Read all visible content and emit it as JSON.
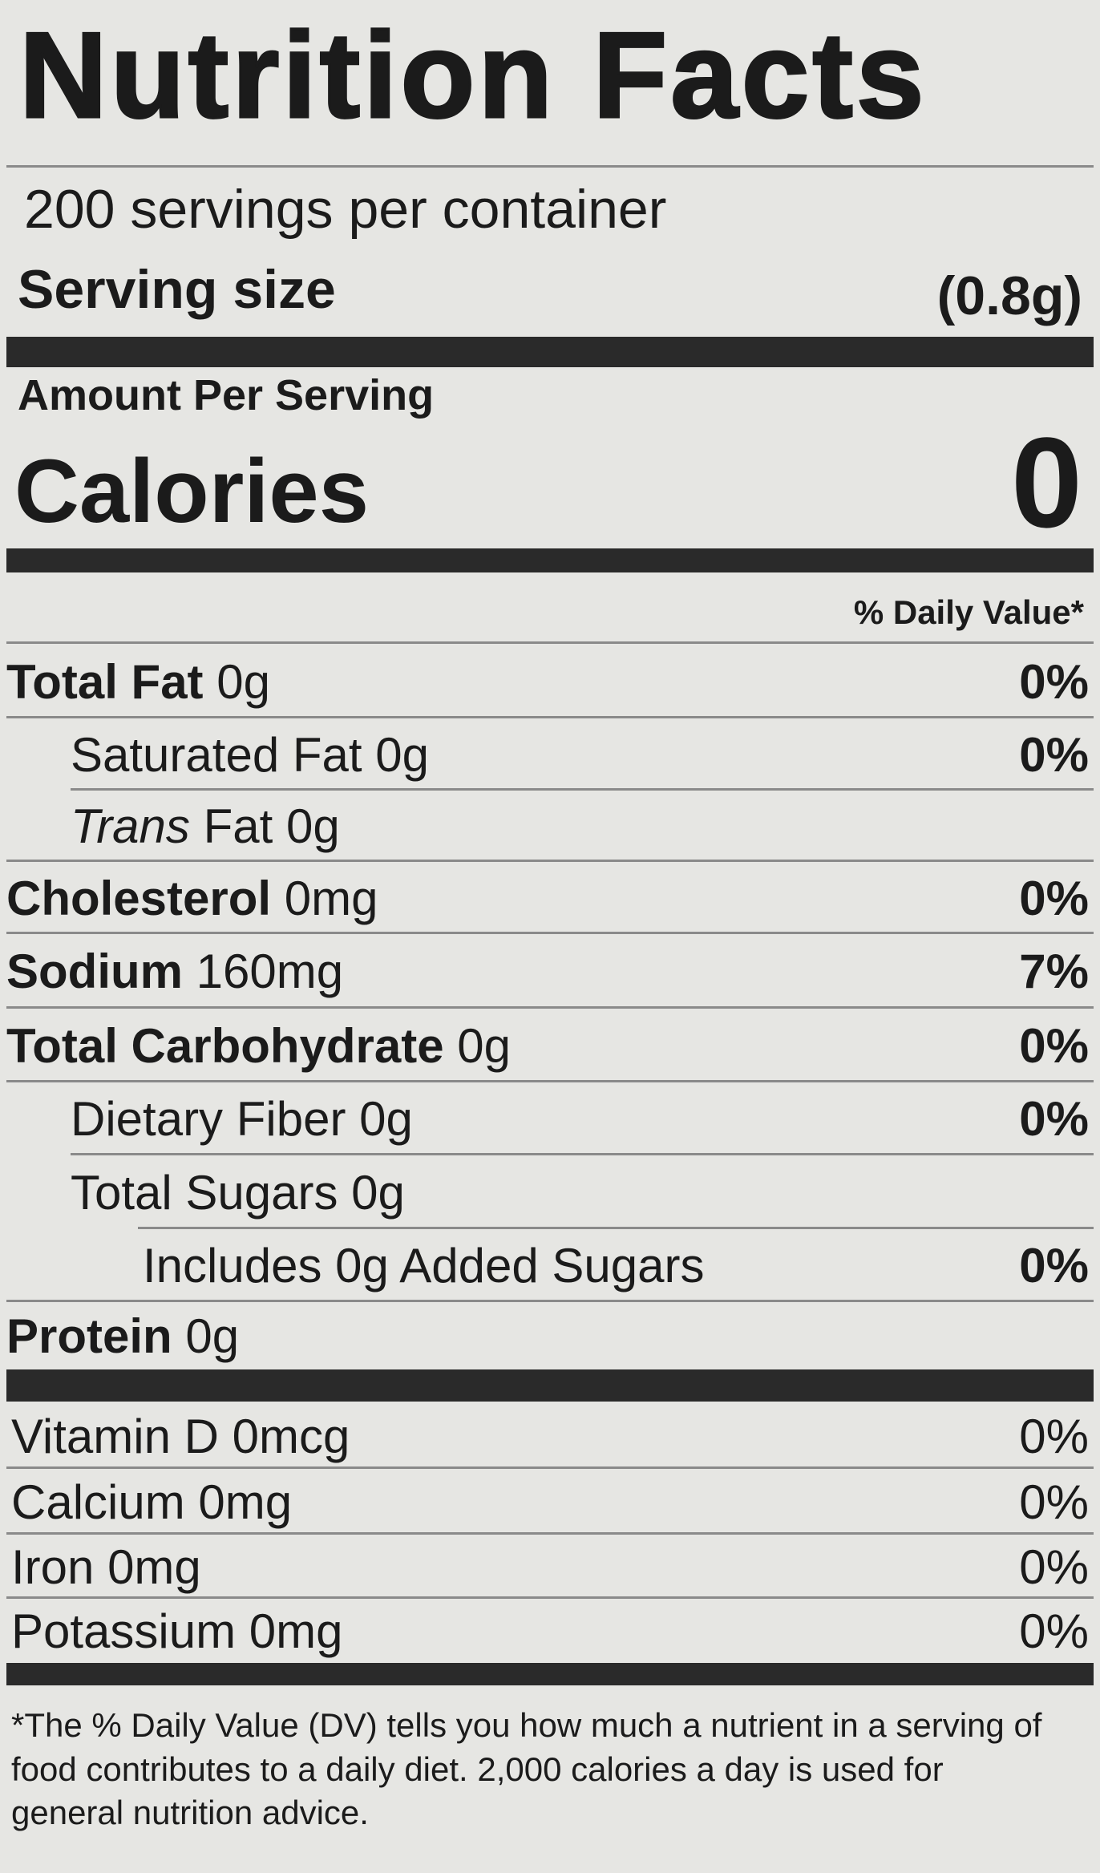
{
  "label": {
    "title": "Nutrition Facts",
    "servings_per_container": "200 servings per container",
    "serving_size_label": "Serving size",
    "serving_size_value": "(0.8g)",
    "amount_per_serving": "Amount Per Serving",
    "calories_label": "Calories",
    "calories_value": "0",
    "daily_value_header": "% Daily Value*",
    "nutrients": [
      {
        "name": "Total Fat",
        "amount": "0g",
        "dv": "0%",
        "bold": true,
        "indent": 0,
        "line_indent": 0
      },
      {
        "name": "Saturated Fat",
        "amount": "0g",
        "dv": "0%",
        "bold": false,
        "indent": 1,
        "line_indent": 1
      },
      {
        "name": "Trans",
        "name_suffix": " Fat",
        "amount": "0g",
        "dv": "",
        "bold": false,
        "italic_name": true,
        "indent": 1,
        "line_indent": 0
      },
      {
        "name": "Cholesterol",
        "amount": "0mg",
        "dv": "0%",
        "bold": true,
        "indent": 0,
        "line_indent": 0
      },
      {
        "name": "Sodium",
        "amount": "160mg",
        "dv": "7%",
        "bold": true,
        "indent": 0,
        "line_indent": 0
      },
      {
        "name": "Total Carbohydrate",
        "amount": "0g",
        "dv": "0%",
        "bold": true,
        "indent": 0,
        "line_indent": 0
      },
      {
        "name": "Dietary Fiber",
        "amount": "0g",
        "dv": "0%",
        "bold": false,
        "indent": 1,
        "line_indent": 1
      },
      {
        "name": "Total Sugars",
        "amount": "0g",
        "dv": "",
        "bold": false,
        "indent": 1,
        "line_indent": 2
      },
      {
        "name": "Includes 0g Added Sugars",
        "amount": "",
        "dv": "0%",
        "bold": false,
        "indent": 2,
        "line_indent": 0
      },
      {
        "name": "Protein",
        "amount": "0g",
        "dv": "",
        "bold": true,
        "indent": 0,
        "line_indent": -1
      }
    ],
    "vitamins": [
      {
        "name": "Vitamin D",
        "amount": "0mcg",
        "dv": "0%"
      },
      {
        "name": "Calcium",
        "amount": "0mg",
        "dv": "0%"
      },
      {
        "name": "Iron",
        "amount": "0mg",
        "dv": "0%"
      },
      {
        "name": "Potassium",
        "amount": "0mg",
        "dv": "0%"
      }
    ],
    "footnote": "*The % Daily Value (DV) tells you how much a nutrient in a serving of food contributes to a daily diet. 2,000 calories a day is used for general nutrition advice."
  }
}
